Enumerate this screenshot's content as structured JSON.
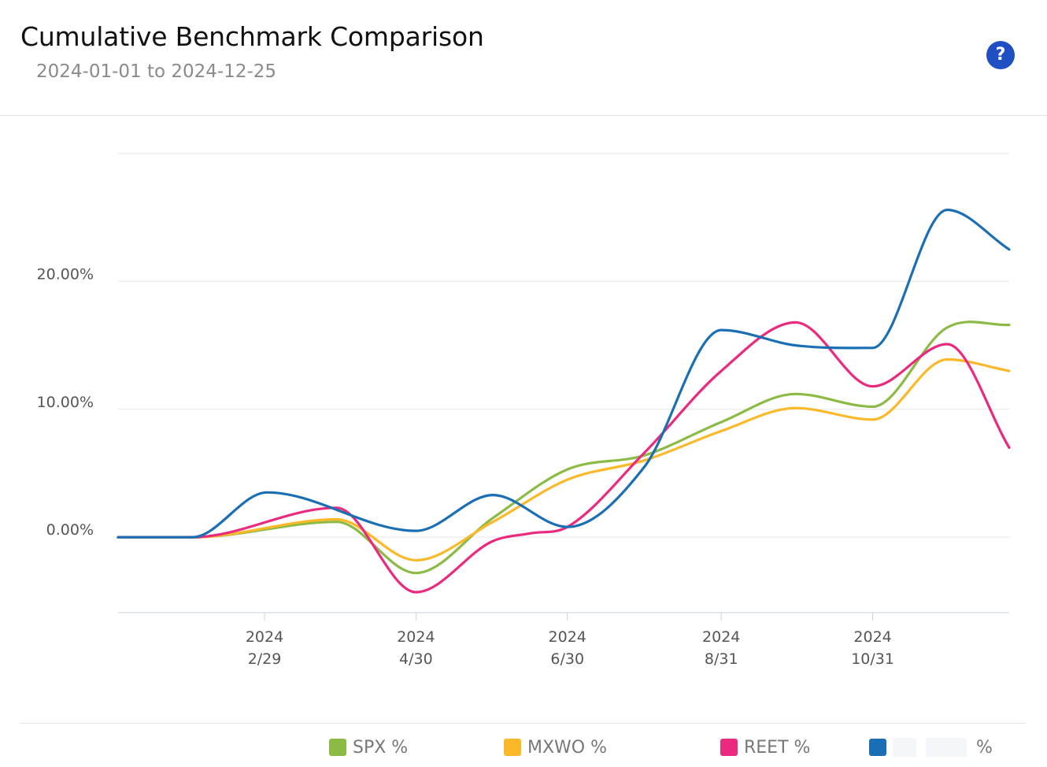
{
  "header": {
    "title": "Cumulative Benchmark Comparison",
    "date_range": "2024-01-01 to 2024-12-25",
    "help_label": "?"
  },
  "chart_data": {
    "type": "line",
    "title": "Cumulative Benchmark Comparison",
    "subtitle": "2024-01-01 to 2024-12-25",
    "y_ticks": [
      0,
      10,
      20
    ],
    "y_tick_labels": [
      "0.00%",
      "10.00%",
      "20.00%"
    ],
    "ylim": [
      -5.9,
      30
    ],
    "xlim": [
      "2024-01-01",
      "2024-12-25"
    ],
    "x_ticks": [
      {
        "date": "2024-02-29",
        "year": "2024",
        "label": "2/29"
      },
      {
        "date": "2024-04-30",
        "year": "2024",
        "label": "4/30"
      },
      {
        "date": "2024-06-30",
        "year": "2024",
        "label": "6/30"
      },
      {
        "date": "2024-08-31",
        "year": "2024",
        "label": "8/31"
      },
      {
        "date": "2024-10-31",
        "year": "2024",
        "label": "10/31"
      }
    ],
    "grid": true,
    "legend_position": "bottom",
    "series": [
      {
        "name": "SPX %",
        "color": "#8cbb45",
        "x": [
          "2024-01-01",
          "2024-01-31",
          "2024-03-29",
          "2024-04-30",
          "2024-05-31",
          "2024-06-30",
          "2024-07-31",
          "2024-08-31",
          "2024-09-30",
          "2024-10-31",
          "2024-11-30",
          "2024-12-25"
        ],
        "y": [
          0,
          0,
          1.2,
          -2.8,
          1.5,
          5.3,
          6.4,
          9.0,
          11.2,
          10.2,
          16.4,
          16.6
        ]
      },
      {
        "name": "MXWO %",
        "color": "#fbb929",
        "x": [
          "2024-01-01",
          "2024-01-31",
          "2024-03-29",
          "2024-04-30",
          "2024-05-31",
          "2024-06-30",
          "2024-07-31",
          "2024-08-31",
          "2024-09-30",
          "2024-10-31",
          "2024-11-30",
          "2024-12-25"
        ],
        "y": [
          0,
          0,
          1.4,
          -1.8,
          1.2,
          4.5,
          6.0,
          8.3,
          10.1,
          9.2,
          13.9,
          13.0
        ]
      },
      {
        "name": "REET %",
        "color": "#ea2a7f",
        "x": [
          "2024-01-01",
          "2024-01-31",
          "2024-03-29",
          "2024-04-30",
          "2024-05-31",
          "2024-06-15",
          "2024-06-30",
          "2024-07-31",
          "2024-08-31",
          "2024-09-30",
          "2024-10-31",
          "2024-11-30",
          "2024-12-25"
        ],
        "y": [
          0,
          0,
          2.3,
          -4.3,
          -0.3,
          0.3,
          0.8,
          6.6,
          13.0,
          16.8,
          11.8,
          15.1,
          7.0
        ]
      },
      {
        "name": "%",
        "color": "#1a6fb4",
        "x": [
          "2024-01-01",
          "2024-01-31",
          "2024-03-01",
          "2024-04-30",
          "2024-05-31",
          "2024-06-30",
          "2024-07-31",
          "2024-08-31",
          "2024-09-30",
          "2024-10-31",
          "2024-11-30",
          "2024-12-25"
        ],
        "y": [
          0,
          0,
          3.5,
          0.5,
          3.3,
          0.8,
          5.5,
          16.2,
          15.0,
          14.8,
          25.6,
          22.5
        ]
      }
    ]
  }
}
